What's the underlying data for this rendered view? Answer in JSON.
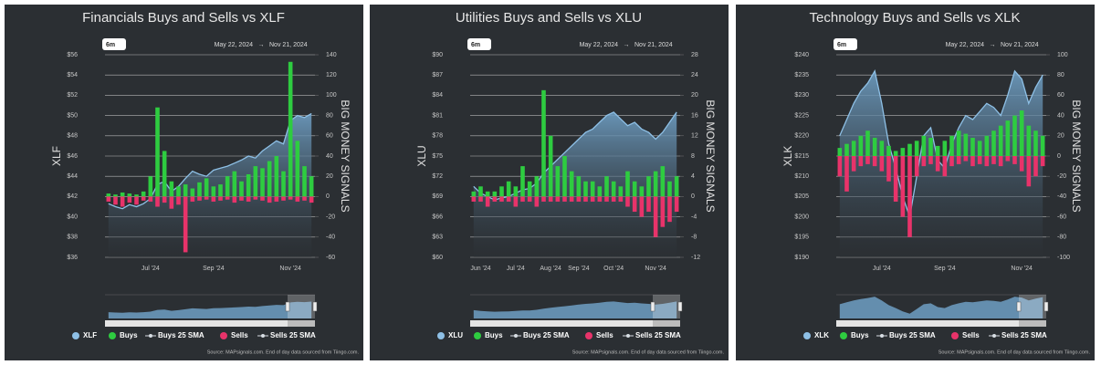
{
  "chart_data": [
    {
      "type": "combo",
      "title": "Financials Buys and Sells vs XLF",
      "range_button": "6m",
      "date_from": "May 22, 2024",
      "date_arrow": "→",
      "date_to": "Nov 21, 2024",
      "ylabel": "XLF",
      "y2label": "BIG MONEY SIGNALS",
      "categories": [
        null,
        null,
        null,
        null,
        null,
        null,
        "Jul '24",
        null,
        null,
        null,
        null,
        null,
        null,
        null,
        null,
        "Sep '24",
        null,
        null,
        null,
        null,
        null,
        null,
        null,
        null,
        null,
        null,
        "Nov '24",
        null,
        null,
        null
      ],
      "series": [
        {
          "name": "XLF",
          "color": "#8ec0e6",
          "values": [
            41.3,
            41.0,
            40.8,
            41.2,
            41.0,
            41.3,
            41.8,
            43.2,
            43.5,
            42.5,
            43.0,
            43.8,
            44.5,
            44.2,
            44.0,
            44.6,
            44.8,
            45.0,
            45.3,
            45.6,
            46.0,
            45.8,
            46.5,
            47.0,
            47.5,
            47.2,
            49.5,
            50.0,
            49.8,
            50.2
          ]
        },
        {
          "name": "Buys",
          "color": "#2ecc40",
          "axis": "y2",
          "values": [
            3,
            2,
            4,
            3,
            2,
            5,
            20,
            88,
            45,
            15,
            10,
            12,
            8,
            14,
            18,
            10,
            12,
            20,
            25,
            15,
            22,
            30,
            28,
            35,
            40,
            25,
            133,
            55,
            30,
            20
          ]
        },
        {
          "name": "Sells",
          "color": "#e8336a",
          "axis": "y2",
          "values": [
            -5,
            -8,
            -10,
            -6,
            -8,
            -4,
            -5,
            -10,
            -6,
            -12,
            -8,
            -55,
            -5,
            -4,
            -3,
            -5,
            -4,
            -3,
            -6,
            -4,
            -5,
            -3,
            -4,
            -6,
            -5,
            -4,
            -3,
            -5,
            -4,
            -6
          ]
        }
      ],
      "sma_series": [
        {
          "name": "Buys 25 SMA",
          "color": "#d8dee4"
        },
        {
          "name": "Sells 25 SMA",
          "color": "#d8dee4"
        }
      ],
      "ylim": [
        36,
        56
      ],
      "yticks": [
        {
          "value": 36,
          "label": "$36"
        },
        {
          "value": 38,
          "label": "$38"
        },
        {
          "value": 40,
          "label": "$40"
        },
        {
          "value": 42,
          "label": "$42"
        },
        {
          "value": 44,
          "label": "$44"
        },
        {
          "value": 46,
          "label": "$46"
        },
        {
          "value": 48,
          "label": "$48"
        },
        {
          "value": 50,
          "label": "$50"
        },
        {
          "value": 52,
          "label": "$52"
        },
        {
          "value": 54,
          "label": "$54"
        },
        {
          "value": 56,
          "label": "$56"
        }
      ],
      "y2lim": [
        -60,
        140
      ],
      "y2ticks": [
        -60,
        -40,
        -20,
        0,
        20,
        40,
        60,
        80,
        100,
        120,
        140
      ],
      "grid": true,
      "source": "Source: MAPsignals.com. End of day data sourced from Tiingo.com."
    },
    {
      "type": "combo",
      "title": "Utilities Buys and Sells vs XLU",
      "range_button": "6m",
      "date_from": "May 22, 2024",
      "date_arrow": "→",
      "date_to": "Nov 21, 2024",
      "ylabel": "XLU",
      "y2label": "BIG MONEY SIGNALS",
      "categories": [
        null,
        "Jun '24",
        null,
        null,
        null,
        null,
        "Jul '24",
        null,
        null,
        null,
        null,
        "Aug '24",
        null,
        null,
        null,
        "Sep '24",
        null,
        null,
        null,
        null,
        "Oct '24",
        null,
        null,
        null,
        null,
        null,
        "Nov '24",
        null,
        null,
        null
      ],
      "series": [
        {
          "name": "XLU",
          "color": "#8ec0e6",
          "values": [
            70.5,
            69.5,
            69.0,
            68.5,
            68.8,
            69.0,
            69.5,
            70.0,
            70.2,
            71.0,
            72.5,
            73.5,
            74.5,
            75.5,
            76.5,
            77.5,
            78.5,
            79.0,
            80.0,
            81.0,
            81.5,
            80.5,
            79.5,
            80.0,
            79.0,
            78.5,
            77.5,
            78.5,
            80.0,
            81.5
          ]
        },
        {
          "name": "Buys",
          "color": "#2ecc40",
          "axis": "y2",
          "values": [
            1,
            2,
            1,
            1,
            2,
            3,
            2,
            6,
            3,
            4,
            21,
            12,
            6,
            8,
            5,
            4,
            3,
            3,
            2,
            4,
            3,
            2,
            5,
            3,
            2,
            4,
            5,
            6,
            3,
            4
          ]
        },
        {
          "name": "Sells",
          "color": "#e8336a",
          "axis": "y2",
          "values": [
            -1,
            -1,
            -2,
            -1,
            -1,
            -1,
            -2,
            -1,
            -1,
            -2,
            -1,
            -1,
            -1,
            -1,
            -1,
            -1,
            -1,
            -1,
            -1,
            -1,
            -1,
            -1,
            -2,
            -3,
            -4,
            -3,
            -8,
            -6,
            -5,
            -3
          ]
        }
      ],
      "sma_series": [
        {
          "name": "Buys 25 SMA",
          "color": "#d8dee4"
        },
        {
          "name": "Sells 25 SMA",
          "color": "#d8dee4"
        }
      ],
      "ylim": [
        60,
        90
      ],
      "yticks": [
        {
          "value": 60,
          "label": "$60"
        },
        {
          "value": 63,
          "label": "$63"
        },
        {
          "value": 66,
          "label": "$66"
        },
        {
          "value": 69,
          "label": "$69"
        },
        {
          "value": 72,
          "label": "$72"
        },
        {
          "value": 75,
          "label": "$75"
        },
        {
          "value": 78,
          "label": "$78"
        },
        {
          "value": 81,
          "label": "$81"
        },
        {
          "value": 84,
          "label": "$84"
        },
        {
          "value": 87,
          "label": "$87"
        },
        {
          "value": 90,
          "label": "$90"
        }
      ],
      "y2lim": [
        -12,
        28
      ],
      "y2ticks": [
        -12,
        -8,
        -4,
        0,
        4,
        8,
        12,
        16,
        20,
        24,
        28
      ],
      "grid": true,
      "source": "Source: MAPsignals.com. End of day data sourced from Tiingo.com."
    },
    {
      "type": "combo",
      "title": "Technology Buys and Sells vs XLK",
      "range_button": "6m",
      "date_from": "May 22, 2024",
      "date_arrow": "→",
      "date_to": "Nov 21, 2024",
      "ylabel": "XLK",
      "y2label": "BIG MONEY SIGNALS",
      "categories": [
        null,
        null,
        null,
        null,
        null,
        null,
        "Jul '24",
        null,
        null,
        null,
        null,
        null,
        null,
        null,
        null,
        "Sep '24",
        null,
        null,
        null,
        null,
        null,
        null,
        null,
        null,
        null,
        null,
        "Nov '24",
        null,
        null,
        null
      ],
      "series": [
        {
          "name": "XLK",
          "color": "#8ec0e6",
          "values": [
            220,
            224,
            228,
            231,
            233,
            236,
            228,
            218,
            212,
            205,
            200,
            210,
            220,
            222,
            214,
            212,
            218,
            222,
            225,
            224,
            226,
            228,
            227,
            225,
            230,
            236,
            234,
            228,
            232,
            235
          ]
        },
        {
          "name": "Buys",
          "color": "#2ecc40",
          "axis": "y2",
          "values": [
            8,
            12,
            15,
            20,
            25,
            18,
            15,
            10,
            5,
            8,
            12,
            15,
            20,
            18,
            10,
            15,
            20,
            25,
            22,
            18,
            15,
            20,
            25,
            30,
            35,
            40,
            45,
            30,
            25,
            20
          ]
        },
        {
          "name": "Sells",
          "color": "#e8336a",
          "axis": "y2",
          "values": [
            -20,
            -35,
            -15,
            -10,
            -8,
            -10,
            -15,
            -25,
            -45,
            -60,
            -80,
            -20,
            -10,
            -8,
            -15,
            -20,
            -10,
            -8,
            -5,
            -10,
            -8,
            -10,
            -8,
            -10,
            -5,
            -8,
            -15,
            -30,
            -20,
            -10
          ]
        }
      ],
      "sma_series": [
        {
          "name": "Buys 25 SMA",
          "color": "#d8dee4"
        },
        {
          "name": "Sells 25 SMA",
          "color": "#d8dee4"
        }
      ],
      "ylim": [
        190,
        240
      ],
      "yticks": [
        {
          "value": 190,
          "label": "$190"
        },
        {
          "value": 195,
          "label": "$195"
        },
        {
          "value": 200,
          "label": "$200"
        },
        {
          "value": 205,
          "label": "$205"
        },
        {
          "value": 210,
          "label": "$210"
        },
        {
          "value": 215,
          "label": "$215"
        },
        {
          "value": 220,
          "label": "$220"
        },
        {
          "value": 225,
          "label": "$225"
        },
        {
          "value": 230,
          "label": "$230"
        },
        {
          "value": 235,
          "label": "$235"
        },
        {
          "value": 240,
          "label": "$240"
        }
      ],
      "y2lim": [
        -100,
        100
      ],
      "y2ticks": [
        -100,
        -80,
        -60,
        -40,
        -20,
        0,
        20,
        40,
        60,
        80,
        100
      ],
      "grid": true,
      "source": "Source: MAPsignals.com. End of day data sourced from Tiingo.com."
    }
  ]
}
